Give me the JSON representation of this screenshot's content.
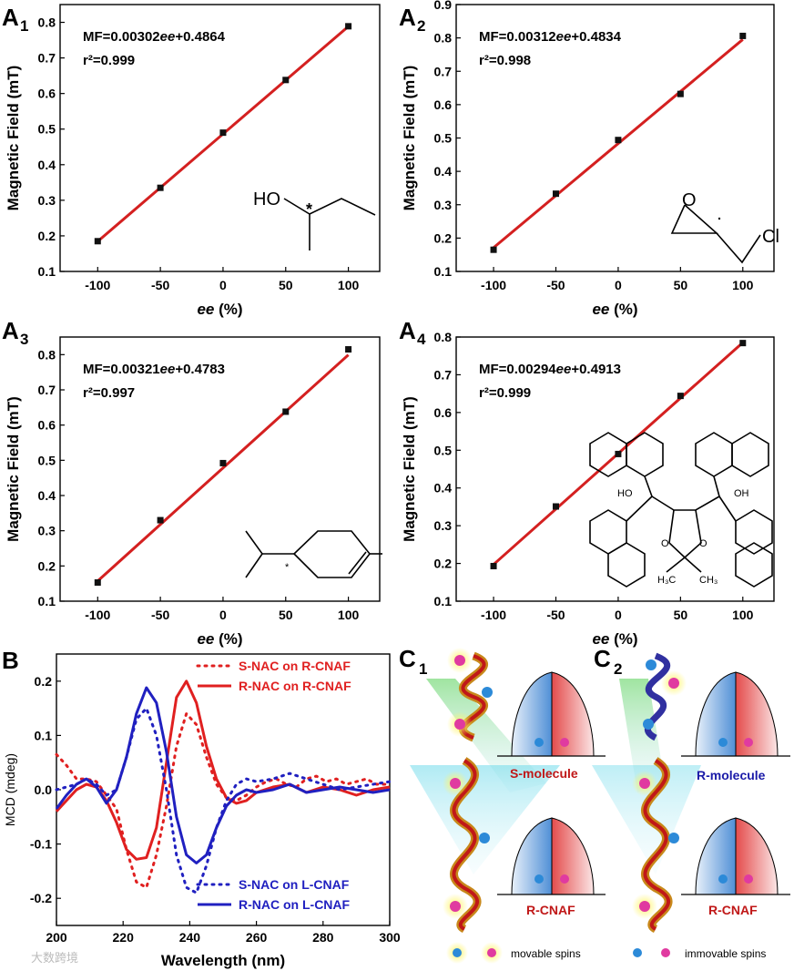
{
  "chart_data": [
    {
      "type": "scatter",
      "panel": "A1",
      "x": [
        -100,
        -50,
        0,
        50,
        100
      ],
      "y": [
        0.185,
        0.335,
        0.49,
        0.638,
        0.789
      ],
      "fit": {
        "slope": 0.00302,
        "intercept": 0.4864
      },
      "equation": "MF=0.00302ee+0.4864",
      "r2": "r²=0.999",
      "xlabel": "ee (%)",
      "ylabel": "Magnetic Field (mT)",
      "xlim": [
        -130,
        125
      ],
      "ylim": [
        0.1,
        0.85
      ],
      "xticks": [
        "-100",
        "-50",
        "0",
        "50",
        "100"
      ],
      "yticks": [
        "0.1",
        "0.2",
        "0.3",
        "0.4",
        "0.5",
        "0.6",
        "0.7",
        "0.8"
      ],
      "molecule_labels": [
        "HO",
        "*"
      ]
    },
    {
      "type": "scatter",
      "panel": "A2",
      "x": [
        -100,
        -50,
        0,
        50,
        100
      ],
      "y": [
        0.165,
        0.333,
        0.494,
        0.632,
        0.806
      ],
      "fit": {
        "slope": 0.00312,
        "intercept": 0.4834
      },
      "equation": "MF=0.00312ee+0.4834",
      "r2": "r²=0.998",
      "xlabel": "ee (%)",
      "ylabel": "Magnetic Field (mT)",
      "xlim": [
        -130,
        125
      ],
      "ylim": [
        0.1,
        0.9
      ],
      "xticks": [
        "-100",
        "-50",
        "0",
        "50",
        "100"
      ],
      "yticks": [
        "0.1",
        "0.2",
        "0.3",
        "0.4",
        "0.5",
        "0.6",
        "0.7",
        "0.8",
        "0.9"
      ],
      "molecule_labels": [
        "O",
        "Cl"
      ]
    },
    {
      "type": "scatter",
      "panel": "A3",
      "x": [
        -100,
        -50,
        0,
        50,
        100
      ],
      "y": [
        0.153,
        0.33,
        0.492,
        0.638,
        0.815
      ],
      "fit": {
        "slope": 0.00321,
        "intercept": 0.4783
      },
      "equation": "MF=0.00321ee+0.4783",
      "r2": "r²=0.997",
      "xlabel": "ee (%)",
      "ylabel": "Magnetic Field (mT)",
      "xlim": [
        -130,
        125
      ],
      "ylim": [
        0.1,
        0.85
      ],
      "xticks": [
        "-100",
        "-50",
        "0",
        "50",
        "100"
      ],
      "yticks": [
        "0.1",
        "0.2",
        "0.3",
        "0.4",
        "0.5",
        "0.6",
        "0.7",
        "0.8"
      ],
      "molecule_labels": [
        "*"
      ]
    },
    {
      "type": "scatter",
      "panel": "A4",
      "x": [
        -100,
        -50,
        0,
        50,
        100
      ],
      "y": [
        0.193,
        0.351,
        0.49,
        0.644,
        0.784
      ],
      "fit": {
        "slope": 0.00294,
        "intercept": 0.4913
      },
      "equation": "MF=0.00294ee+0.4913",
      "r2": "r²=0.999",
      "xlabel": "ee (%)",
      "ylabel": "Magnetic Field (mT)",
      "xlim": [
        -130,
        125
      ],
      "ylim": [
        0.1,
        0.8
      ],
      "xticks": [
        "-100",
        "-50",
        "0",
        "50",
        "100"
      ],
      "yticks": [
        "0.1",
        "0.2",
        "0.3",
        "0.4",
        "0.5",
        "0.6",
        "0.7",
        "0.8"
      ],
      "molecule_labels": [
        "HO",
        "OH",
        "O",
        "O",
        "H₃C",
        "CH₃"
      ]
    },
    {
      "type": "line",
      "panel": "B",
      "xlabel": "Wavelength (nm)",
      "ylabel": "MCD (mdeg)",
      "xlim": [
        200,
        300
      ],
      "ylim": [
        -0.25,
        0.25
      ],
      "xticks": [
        "200",
        "220",
        "240",
        "260",
        "280",
        "300"
      ],
      "yticks": [
        "-0.2",
        "-0.1",
        "0.0",
        "0.1",
        "0.2"
      ],
      "series": [
        {
          "name": "S-NAC on R-CNAF",
          "color": "#e02020",
          "dash": "dot",
          "x": [
            200,
            203,
            206,
            209,
            212,
            215,
            218,
            221,
            224,
            227,
            230,
            233,
            236,
            239,
            242,
            245,
            248,
            251,
            254,
            257,
            260,
            263,
            266,
            269,
            272,
            275,
            278,
            281,
            284,
            287,
            290,
            293,
            296,
            300
          ],
          "y": [
            0.065,
            0.045,
            0.02,
            0.02,
            0.015,
            -0.01,
            -0.035,
            -0.11,
            -0.17,
            -0.18,
            -0.12,
            -0.03,
            0.08,
            0.14,
            0.12,
            0.06,
            0.01,
            -0.015,
            -0.02,
            -0.01,
            0.005,
            0.015,
            0.02,
            0.01,
            0.005,
            0.02,
            0.025,
            0.015,
            0.02,
            0.01,
            0.015,
            0.02,
            0.01,
            0.01
          ]
        },
        {
          "name": "R-NAC on R-CNAF",
          "color": "#e02020",
          "dash": "solid",
          "x": [
            200,
            203,
            206,
            209,
            212,
            215,
            218,
            221,
            224,
            227,
            230,
            233,
            236,
            239,
            242,
            245,
            248,
            251,
            254,
            257,
            260,
            265,
            270,
            275,
            280,
            285,
            290,
            295,
            300
          ],
          "y": [
            -0.04,
            -0.02,
            0.0,
            0.01,
            0.005,
            -0.02,
            -0.06,
            -0.11,
            -0.128,
            -0.125,
            -0.07,
            0.05,
            0.17,
            0.2,
            0.16,
            0.08,
            0.02,
            -0.015,
            -0.025,
            -0.02,
            -0.005,
            0.005,
            0.01,
            -0.005,
            0.005,
            0.0,
            -0.01,
            0.0,
            0.005
          ]
        },
        {
          "name": "S-NAC on L-CNAF",
          "color": "#2020c0",
          "dash": "dot",
          "x": [
            200,
            203,
            206,
            209,
            212,
            215,
            218,
            221,
            224,
            227,
            230,
            233,
            236,
            239,
            242,
            245,
            248,
            251,
            254,
            257,
            260,
            265,
            270,
            275,
            280,
            285,
            290,
            295,
            300
          ],
          "y": [
            0.0,
            0.005,
            0.01,
            0.02,
            0.01,
            -0.01,
            0.0,
            0.06,
            0.13,
            0.15,
            0.1,
            0.0,
            -0.12,
            -0.18,
            -0.19,
            -0.14,
            -0.07,
            -0.02,
            0.01,
            0.02,
            0.015,
            0.02,
            0.03,
            0.02,
            0.01,
            0.0,
            0.005,
            0.01,
            0.015
          ]
        },
        {
          "name": "R-NAC on L-CNAF",
          "color": "#2020c0",
          "dash": "solid",
          "x": [
            200,
            203,
            206,
            209,
            212,
            215,
            218,
            221,
            224,
            227,
            230,
            233,
            236,
            239,
            242,
            245,
            248,
            251,
            254,
            257,
            260,
            265,
            270,
            275,
            280,
            285,
            290,
            295,
            300
          ],
          "y": [
            -0.035,
            -0.01,
            0.01,
            0.02,
            0.005,
            -0.025,
            0.0,
            0.06,
            0.14,
            0.188,
            0.16,
            0.07,
            -0.05,
            -0.12,
            -0.135,
            -0.12,
            -0.07,
            -0.03,
            -0.01,
            0.0,
            -0.005,
            0.0,
            0.01,
            -0.005,
            0.0,
            0.005,
            0.0,
            -0.005,
            0.0
          ]
        }
      ]
    }
  ],
  "panels": {
    "A1": "A",
    "A1_sub": "1",
    "A2": "A",
    "A2_sub": "2",
    "A3": "A",
    "A3_sub": "3",
    "A4": "A",
    "A4_sub": "4",
    "B": "B",
    "C1": "C",
    "C1_sub": "1",
    "C2": "C",
    "C2_sub": "2"
  },
  "schematic": {
    "c1_top_label": "S-molecule",
    "c1_bottom_label": "R-CNAF",
    "c2_top_label": "R-molecule",
    "c2_bottom_label": "R-CNAF",
    "legend_movable": "movable spins",
    "legend_immovable": "immovable spins"
  },
  "colors": {
    "fit": "#d42020",
    "red": "#e02020",
    "blue": "#2020c0",
    "label_red": "#c01818",
    "label_blue": "#1a1aa8"
  },
  "watermark": "大数跨境"
}
